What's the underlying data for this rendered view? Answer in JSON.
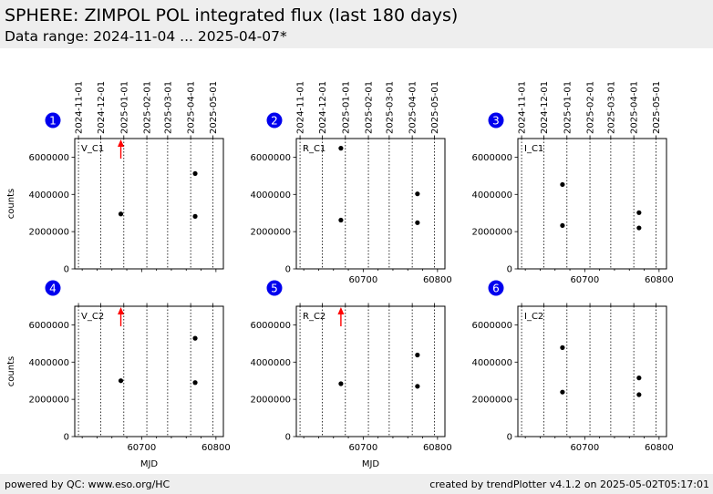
{
  "header": {
    "title": "SPHERE: ZIMPOL POL integrated flux (last 180 days)",
    "subtitle": "Data range: 2024-11-04 ... 2025-04-07*"
  },
  "footer": {
    "left": "powered by QC: www.eso.org/HC",
    "right": "created by trendPlotter v4.1.2 on 2025-05-02T05:17:01"
  },
  "colors": {
    "panel_badge": "#0000ee",
    "marker": "#000000",
    "arrow": "#ff0000",
    "header_bg": "#eeeeee"
  },
  "chart_data": [
    {
      "type": "scatter",
      "panel": "1",
      "label": "V_C1",
      "ylabel": "counts",
      "xlabel": "",
      "x": [
        60672,
        60772,
        60772
      ],
      "y": [
        2950000,
        5120000,
        2820000
      ],
      "out_of_range_arrows": [
        60672
      ],
      "xlim": [
        60610,
        60810
      ],
      "ylim": [
        0,
        7000000
      ],
      "xticks": [
        60700,
        60800
      ],
      "xtick_labels": [
        "60700",
        "60800"
      ],
      "yticks": [
        0,
        2000000,
        4000000,
        6000000
      ],
      "ytick_labels": [
        "0",
        "2000000",
        "4000000",
        "6000000"
      ],
      "date_ticks": [
        "2024-11-01",
        "2024-12-01",
        "2025-01-01",
        "2025-02-01",
        "2025-03-01",
        "2025-04-01",
        "2025-05-01"
      ],
      "date_tick_mjd": [
        60615,
        60645,
        60676,
        60707,
        60735,
        60766,
        60796
      ],
      "xtick_labels_visible": false,
      "ytick_labels_visible": true
    },
    {
      "type": "scatter",
      "panel": "2",
      "label": "R_C1",
      "ylabel": "",
      "xlabel": "",
      "x": [
        60670,
        60670,
        60773,
        60773
      ],
      "y": [
        6480000,
        2620000,
        4030000,
        2480000
      ],
      "out_of_range_arrows": [],
      "xlim": [
        60610,
        60810
      ],
      "ylim": [
        0,
        7000000
      ],
      "xticks": [
        60700,
        60800
      ],
      "xtick_labels": [
        "60700",
        "60800"
      ],
      "yticks": [
        0,
        2000000,
        4000000,
        6000000
      ],
      "ytick_labels": [
        "0",
        "2000000",
        "4000000",
        "6000000"
      ],
      "date_ticks": [
        "2024-11-01",
        "2024-12-01",
        "2025-01-01",
        "2025-02-01",
        "2025-03-01",
        "2025-04-01",
        "2025-05-01"
      ],
      "date_tick_mjd": [
        60615,
        60645,
        60676,
        60707,
        60735,
        60766,
        60796
      ],
      "xtick_labels_visible": true,
      "ytick_labels_visible": true
    },
    {
      "type": "scatter",
      "panel": "3",
      "label": "I_C1",
      "ylabel": "",
      "xlabel": "",
      "x": [
        60670,
        60670,
        60773,
        60773
      ],
      "y": [
        4530000,
        2330000,
        3020000,
        2200000
      ],
      "out_of_range_arrows": [],
      "xlim": [
        60610,
        60810
      ],
      "ylim": [
        0,
        7000000
      ],
      "xticks": [
        60700,
        60800
      ],
      "xtick_labels": [
        "60700",
        "60800"
      ],
      "yticks": [
        0,
        2000000,
        4000000,
        6000000
      ],
      "ytick_labels": [
        "0",
        "2000000",
        "4000000",
        "6000000"
      ],
      "date_ticks": [
        "2024-11-01",
        "2024-12-01",
        "2025-01-01",
        "2025-02-01",
        "2025-03-01",
        "2025-04-01",
        "2025-05-01"
      ],
      "date_tick_mjd": [
        60615,
        60645,
        60676,
        60707,
        60735,
        60766,
        60796
      ],
      "xtick_labels_visible": true,
      "ytick_labels_visible": true
    },
    {
      "type": "scatter",
      "panel": "4",
      "label": "V_C2",
      "ylabel": "counts",
      "xlabel": "MJD",
      "x": [
        60672,
        60772,
        60772
      ],
      "y": [
        3000000,
        5280000,
        2900000
      ],
      "out_of_range_arrows": [
        60672
      ],
      "xlim": [
        60610,
        60810
      ],
      "ylim": [
        0,
        7000000
      ],
      "xticks": [
        60700,
        60800
      ],
      "xtick_labels": [
        "60700",
        "60800"
      ],
      "yticks": [
        0,
        2000000,
        4000000,
        6000000
      ],
      "ytick_labels": [
        "0",
        "2000000",
        "4000000",
        "6000000"
      ],
      "date_ticks": [
        "2024-11-01",
        "2024-12-01",
        "2025-01-01",
        "2025-02-01",
        "2025-03-01",
        "2025-04-01",
        "2025-05-01"
      ],
      "date_tick_mjd": [
        60615,
        60645,
        60676,
        60707,
        60735,
        60766,
        60796
      ],
      "xtick_labels_visible": true,
      "ytick_labels_visible": true
    },
    {
      "type": "scatter",
      "panel": "5",
      "label": "R_C2",
      "ylabel": "",
      "xlabel": "MJD",
      "x": [
        60670,
        60773,
        60773
      ],
      "y": [
        2840000,
        4380000,
        2700000
      ],
      "out_of_range_arrows": [
        60670
      ],
      "xlim": [
        60610,
        60810
      ],
      "ylim": [
        0,
        7000000
      ],
      "xticks": [
        60700,
        60800
      ],
      "xtick_labels": [
        "60700",
        "60800"
      ],
      "yticks": [
        0,
        2000000,
        4000000,
        6000000
      ],
      "ytick_labels": [
        "0",
        "2000000",
        "4000000",
        "6000000"
      ],
      "date_ticks": [
        "2024-11-01",
        "2024-12-01",
        "2025-01-01",
        "2025-02-01",
        "2025-03-01",
        "2025-04-01",
        "2025-05-01"
      ],
      "date_tick_mjd": [
        60615,
        60645,
        60676,
        60707,
        60735,
        60766,
        60796
      ],
      "xtick_labels_visible": true,
      "ytick_labels_visible": true
    },
    {
      "type": "scatter",
      "panel": "6",
      "label": "I_C2",
      "ylabel": "",
      "xlabel": "",
      "x": [
        60670,
        60670,
        60773,
        60773
      ],
      "y": [
        4780000,
        2390000,
        3150000,
        2250000
      ],
      "out_of_range_arrows": [],
      "xlim": [
        60610,
        60810
      ],
      "ylim": [
        0,
        7000000
      ],
      "xticks": [
        60700,
        60800
      ],
      "xtick_labels": [
        "60700",
        "60800"
      ],
      "yticks": [
        0,
        2000000,
        4000000,
        6000000
      ],
      "ytick_labels": [
        "0",
        "2000000",
        "4000000",
        "6000000"
      ],
      "date_ticks": [
        "2024-11-01",
        "2024-12-01",
        "2025-01-01",
        "2025-02-01",
        "2025-03-01",
        "2025-04-01",
        "2025-05-01"
      ],
      "date_tick_mjd": [
        60615,
        60645,
        60676,
        60707,
        60735,
        60766,
        60796
      ],
      "xtick_labels_visible": true,
      "ytick_labels_visible": true
    }
  ]
}
